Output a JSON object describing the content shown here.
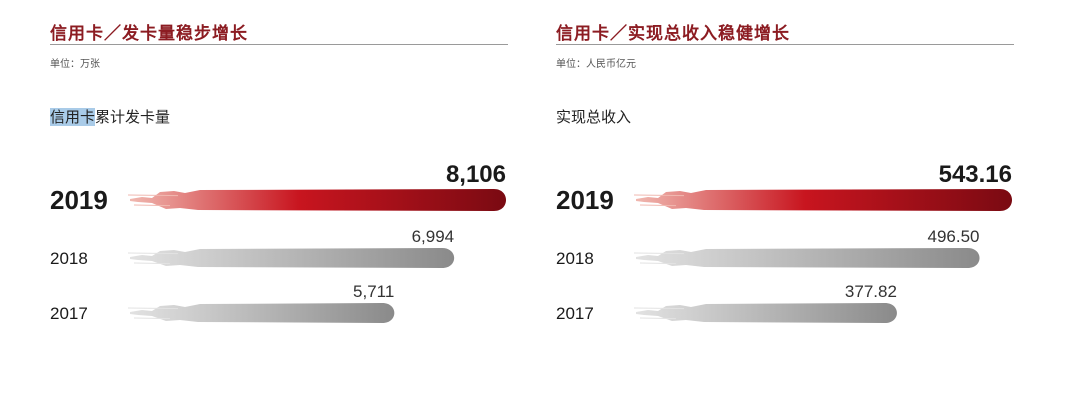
{
  "colors": {
    "title": "#8c1c22",
    "highlight_bar_start": "#f0b8b0",
    "highlight_bar_mid": "#c8151f",
    "highlight_bar_end": "#7a0a12",
    "gray_bar_start": "#e2e2e2",
    "gray_bar_end": "#8a8a8a"
  },
  "left": {
    "title": "信用卡／发卡量稳步增长",
    "unit": "单位：万张",
    "series_label_highlighted": "信用卡",
    "series_label_rest": "累计发卡量"
  },
  "right": {
    "title": "信用卡／实现总收入稳健增长",
    "unit": "单位：人民币亿元",
    "series_label": "实现总收入"
  },
  "chart_data": [
    {
      "type": "bar",
      "orientation": "horizontal",
      "categories": [
        "2019",
        "2018",
        "2017"
      ],
      "values": [
        8106,
        6994,
        5711
      ],
      "value_labels": [
        "8,106",
        "6,994",
        "5,711"
      ],
      "highlight_category": "2019",
      "title": "信用卡／发卡量稳步增长",
      "unit": "万张",
      "xlim": [
        0,
        8106
      ]
    },
    {
      "type": "bar",
      "orientation": "horizontal",
      "categories": [
        "2019",
        "2018",
        "2017"
      ],
      "values": [
        543.16,
        496.5,
        377.82
      ],
      "value_labels": [
        "543.16",
        "496.50",
        "377.82"
      ],
      "highlight_category": "2019",
      "title": "信用卡／实现总收入稳健增长",
      "unit": "人民币亿元",
      "xlim": [
        0,
        543.16
      ]
    }
  ]
}
